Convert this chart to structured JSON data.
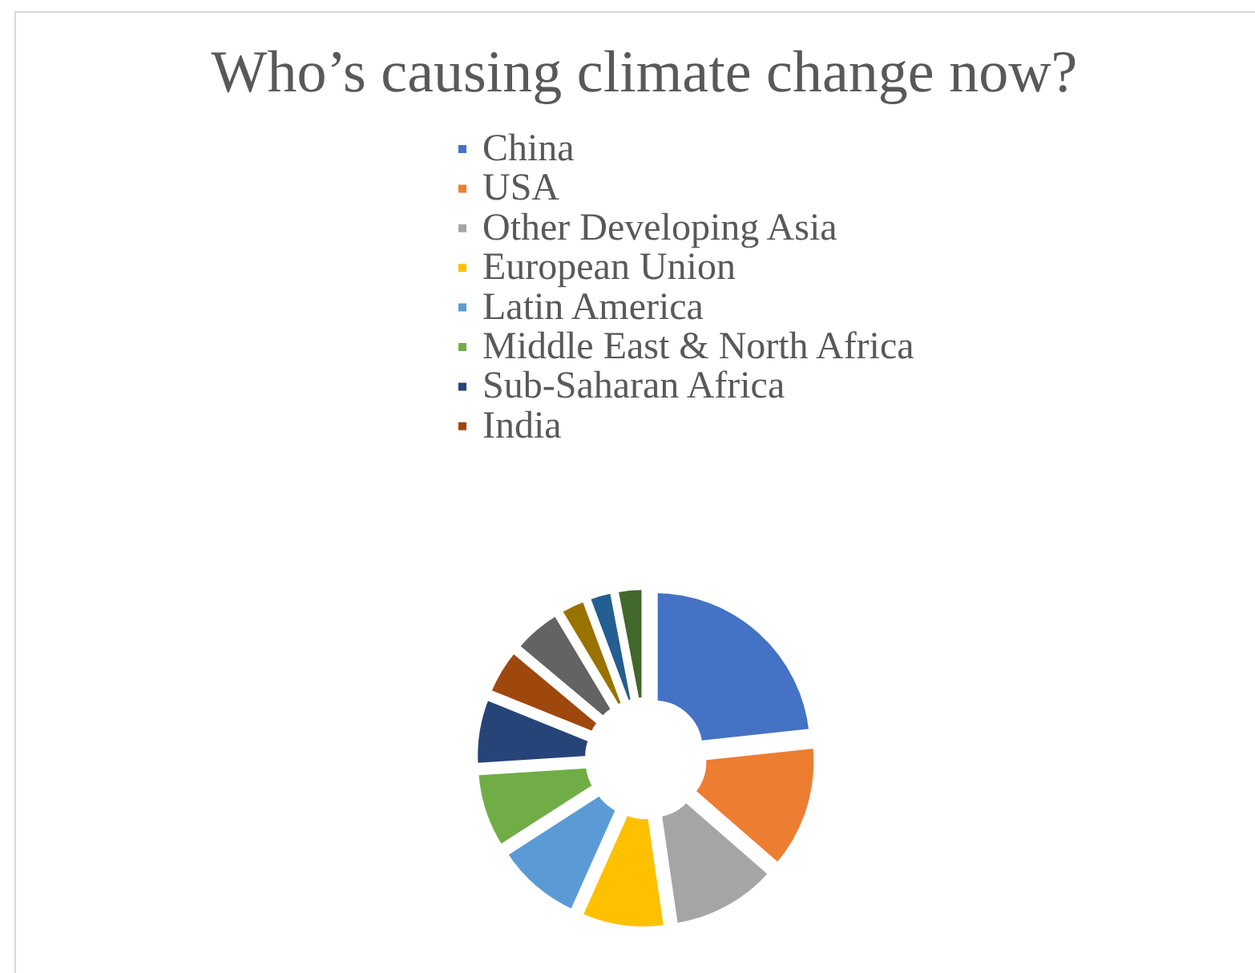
{
  "chart_data": {
    "type": "donut",
    "title": "Who’s causing climate change now?",
    "categories": [
      "China",
      "USA",
      "Other Developing Asia",
      "European Union",
      "Latin America",
      "Middle East & North Africa",
      "Sub-Saharan Africa",
      "India",
      null,
      null,
      null,
      null
    ],
    "values": [
      23.3,
      13.1,
      11.3,
      9.0,
      9.2,
      8.1,
      7.1,
      5.0,
      5.3,
      2.9,
      2.7,
      3.0
    ],
    "colors": [
      "#4472c4",
      "#ed7d31",
      "#a5a5a5",
      "#ffc000",
      "#5b9bd5",
      "#70ad47",
      "#264478",
      "#9e480e",
      "#636363",
      "#997300",
      "#255e91",
      "#43682b"
    ],
    "legend": "top"
  }
}
